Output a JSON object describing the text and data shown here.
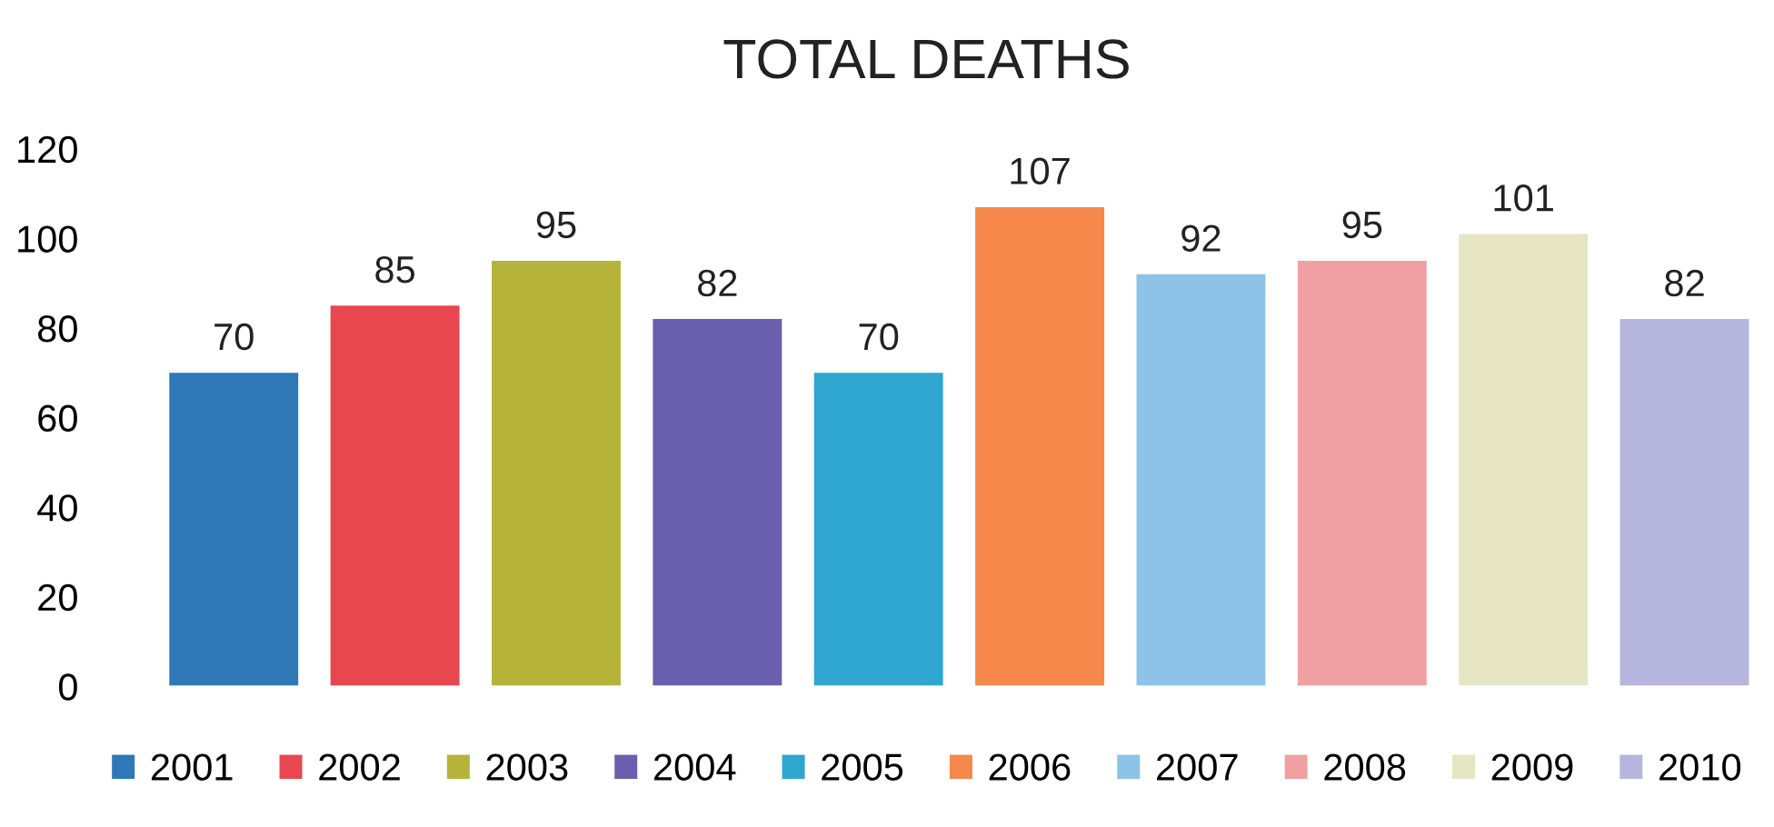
{
  "chart_data": {
    "type": "bar",
    "title": "TOTAL DEATHS",
    "categories": [
      null,
      null,
      null,
      null,
      null,
      null,
      null,
      null,
      null,
      null
    ],
    "series": [
      {
        "name": "2001",
        "color": "#2e78b8",
        "values": [
          70,
          null,
          null,
          null,
          null,
          null,
          null,
          null,
          null,
          null
        ]
      },
      {
        "name": "2002",
        "color": "#e8474f",
        "values": [
          null,
          85,
          null,
          null,
          null,
          null,
          null,
          null,
          null,
          null
        ]
      },
      {
        "name": "2003",
        "color": "#b5b33a",
        "values": [
          null,
          null,
          95,
          null,
          null,
          null,
          null,
          null,
          null,
          null
        ]
      },
      {
        "name": "2004",
        "color": "#6a5fae",
        "values": [
          null,
          null,
          null,
          82,
          null,
          null,
          null,
          null,
          null,
          null
        ]
      },
      {
        "name": "2005",
        "color": "#2ea6cf",
        "values": [
          null,
          null,
          null,
          null,
          70,
          null,
          null,
          null,
          null,
          null
        ]
      },
      {
        "name": "2006",
        "color": "#f5884a",
        "values": [
          null,
          null,
          null,
          null,
          null,
          107,
          null,
          null,
          null,
          null
        ]
      },
      {
        "name": "2007",
        "color": "#8cc3e6",
        "values": [
          null,
          null,
          null,
          null,
          null,
          null,
          92,
          null,
          null,
          null
        ]
      },
      {
        "name": "2008",
        "color": "#f0a0a3",
        "values": [
          null,
          null,
          null,
          null,
          null,
          null,
          null,
          95,
          null,
          null
        ]
      },
      {
        "name": "2009",
        "color": "#e6e5c3",
        "values": [
          null,
          null,
          null,
          null,
          null,
          null,
          null,
          null,
          101,
          null
        ]
      },
      {
        "name": "2010",
        "color": "#b5b5dd",
        "values": [
          null,
          null,
          null,
          null,
          null,
          null,
          null,
          null,
          null,
          82
        ]
      }
    ],
    "ylim": [
      0,
      120
    ],
    "yticks": [
      0,
      20,
      40,
      60,
      80,
      100,
      120
    ],
    "grid": false,
    "legend": "bottom",
    "data_labels": true
  }
}
